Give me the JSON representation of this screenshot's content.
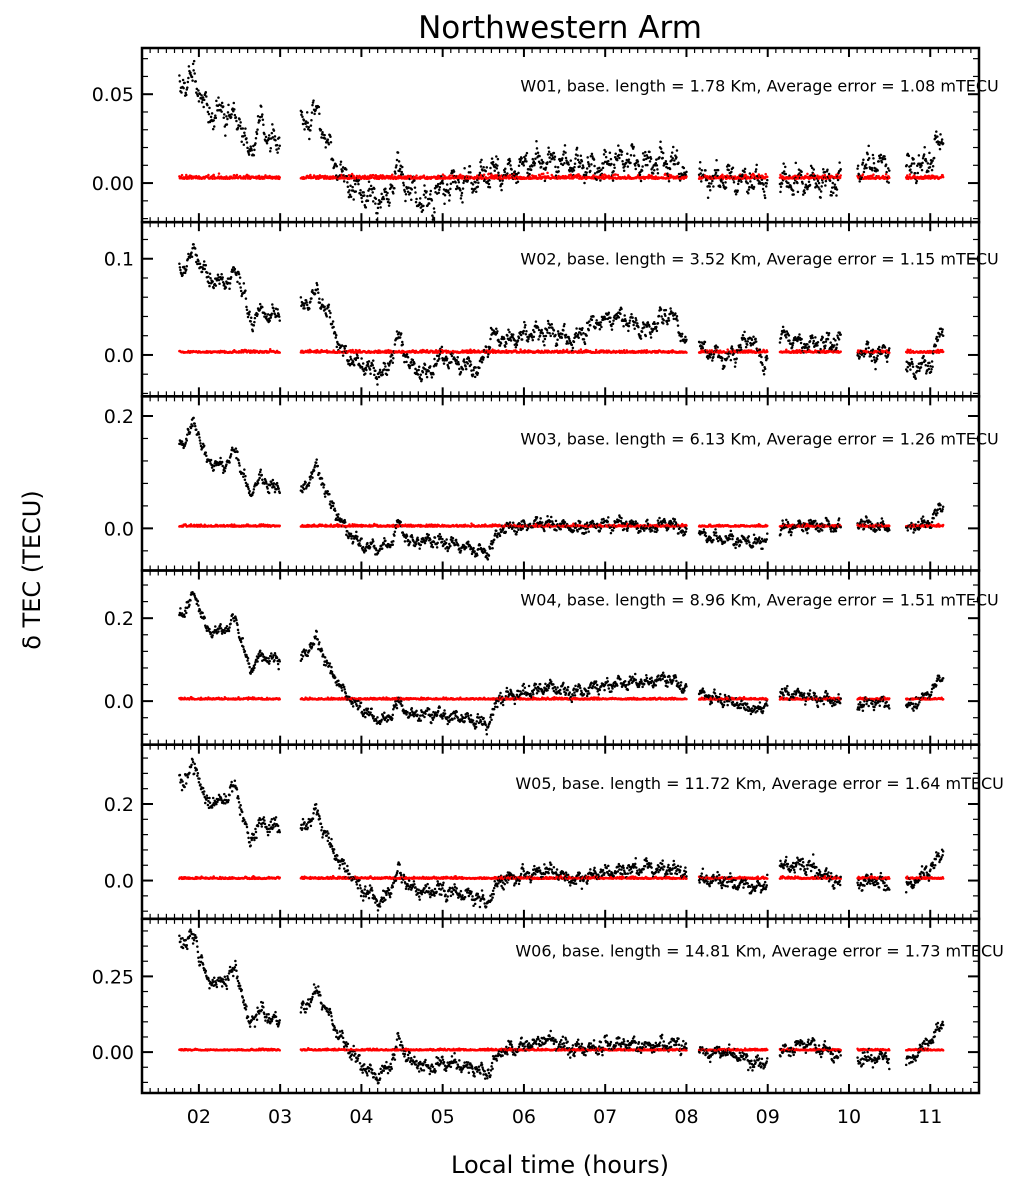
{
  "chart_data": {
    "type": "scatter",
    "title": "Northwestern Arm",
    "xlabel": "Local time (hours)",
    "ylabel": "δ TEC (TECU)",
    "x_unit": "hours",
    "xlim": [
      1.3,
      11.6
    ],
    "x_ticks": [
      2,
      3,
      4,
      5,
      6,
      7,
      8,
      9,
      10,
      11
    ],
    "x_tick_labels": [
      "02",
      "03",
      "04",
      "05",
      "06",
      "07",
      "08",
      "09",
      "10",
      "11"
    ],
    "data_gaps_hours": [
      [
        3.0,
        3.25
      ],
      [
        8.0,
        8.15
      ],
      [
        9.0,
        9.15
      ],
      [
        9.9,
        10.1
      ],
      [
        10.5,
        10.7
      ]
    ],
    "series_colors": {
      "delta_tec": "#000000",
      "error": "#ff0000"
    },
    "marker": "dot",
    "grid": false,
    "panels": [
      {
        "annotation": "W01, base. length = 1.78 Km, Average error = 1.08 mTECU",
        "ylim": [
          -0.022,
          0.076
        ],
        "y_ticks": [
          0.0,
          0.05
        ],
        "y_tick_labels": [
          "0.00",
          "0.05"
        ],
        "error_level": 0.003,
        "error_scatter": 0.0025,
        "noise_sd": 0.006,
        "delta_tec_trend": [
          [
            1.8,
            0.055
          ],
          [
            1.95,
            0.06
          ],
          [
            2.1,
            0.04
          ],
          [
            2.3,
            0.04
          ],
          [
            2.5,
            0.035
          ],
          [
            2.62,
            0.015
          ],
          [
            2.75,
            0.035
          ],
          [
            2.95,
            0.02
          ],
          [
            3.25,
            0.03
          ],
          [
            3.45,
            0.04
          ],
          [
            3.6,
            0.02
          ],
          [
            3.75,
            0.005
          ],
          [
            3.9,
            -0.002
          ],
          [
            4.1,
            -0.008
          ],
          [
            4.3,
            -0.01
          ],
          [
            4.45,
            0.01
          ],
          [
            4.6,
            -0.005
          ],
          [
            4.8,
            -0.012
          ],
          [
            5.0,
            -0.002
          ],
          [
            5.2,
            0.0
          ],
          [
            5.45,
            0.002
          ],
          [
            5.6,
            0.008
          ],
          [
            5.8,
            0.005
          ],
          [
            6.0,
            0.01
          ],
          [
            6.3,
            0.012
          ],
          [
            6.6,
            0.012
          ],
          [
            6.9,
            0.008
          ],
          [
            7.2,
            0.014
          ],
          [
            7.5,
            0.012
          ],
          [
            7.8,
            0.012
          ],
          [
            8.0,
            0.006
          ],
          [
            8.15,
            0.002
          ],
          [
            8.5,
            0.003
          ],
          [
            8.9,
            0.0
          ],
          [
            9.15,
            0.0
          ],
          [
            9.5,
            0.001
          ],
          [
            9.9,
            0.0
          ],
          [
            10.1,
            0.008
          ],
          [
            10.3,
            0.012
          ],
          [
            10.5,
            0.01
          ],
          [
            10.7,
            0.008
          ],
          [
            11.0,
            0.012
          ],
          [
            11.15,
            0.025
          ]
        ],
        "annotation_x": 8.9,
        "annotation_y": 0.055
      },
      {
        "annotation": "W02, base. length = 3.52 Km, Average error = 1.15 mTECU",
        "ylim": [
          -0.043,
          0.138
        ],
        "y_ticks": [
          0.0,
          0.1
        ],
        "y_tick_labels": [
          "0.0",
          "0.1"
        ],
        "error_level": 0.003,
        "error_scatter": 0.003,
        "noise_sd": 0.007,
        "delta_tec_trend": [
          [
            1.8,
            0.09
          ],
          [
            1.95,
            0.11
          ],
          [
            2.1,
            0.08
          ],
          [
            2.3,
            0.075
          ],
          [
            2.5,
            0.085
          ],
          [
            2.62,
            0.035
          ],
          [
            2.75,
            0.045
          ],
          [
            2.95,
            0.04
          ],
          [
            3.25,
            0.045
          ],
          [
            3.45,
            0.065
          ],
          [
            3.6,
            0.04
          ],
          [
            3.75,
            0.005
          ],
          [
            3.9,
            -0.005
          ],
          [
            4.1,
            -0.015
          ],
          [
            4.3,
            -0.02
          ],
          [
            4.45,
            0.02
          ],
          [
            4.6,
            -0.01
          ],
          [
            4.8,
            -0.02
          ],
          [
            5.0,
            0.0
          ],
          [
            5.2,
            -0.01
          ],
          [
            5.45,
            -0.015
          ],
          [
            5.6,
            0.02
          ],
          [
            5.8,
            0.015
          ],
          [
            6.0,
            0.02
          ],
          [
            6.3,
            0.025
          ],
          [
            6.6,
            0.015
          ],
          [
            6.9,
            0.035
          ],
          [
            7.2,
            0.04
          ],
          [
            7.5,
            0.025
          ],
          [
            7.8,
            0.045
          ],
          [
            8.0,
            0.015
          ],
          [
            8.15,
            0.008
          ],
          [
            8.5,
            -0.005
          ],
          [
            8.8,
            0.02
          ],
          [
            8.95,
            -0.01
          ],
          [
            9.15,
            0.02
          ],
          [
            9.5,
            0.01
          ],
          [
            9.9,
            0.015
          ],
          [
            10.1,
            0.005
          ],
          [
            10.3,
            0.0
          ],
          [
            10.5,
            0.005
          ],
          [
            10.7,
            -0.015
          ],
          [
            11.0,
            -0.01
          ],
          [
            11.15,
            0.03
          ]
        ],
        "annotation_x": 8.9,
        "annotation_y": 0.1
      },
      {
        "annotation": "W03, base. length = 6.13 Km, Average error = 1.26 mTECU",
        "ylim": [
          -0.075,
          0.235
        ],
        "y_ticks": [
          0.0,
          0.2
        ],
        "y_tick_labels": [
          "0.0",
          "0.2"
        ],
        "error_level": 0.004,
        "error_scatter": 0.004,
        "noise_sd": 0.008,
        "delta_tec_trend": [
          [
            1.8,
            0.15
          ],
          [
            1.95,
            0.19
          ],
          [
            2.1,
            0.12
          ],
          [
            2.3,
            0.11
          ],
          [
            2.45,
            0.14
          ],
          [
            2.62,
            0.06
          ],
          [
            2.75,
            0.09
          ],
          [
            2.95,
            0.07
          ],
          [
            3.25,
            0.06
          ],
          [
            3.45,
            0.11
          ],
          [
            3.6,
            0.05
          ],
          [
            3.8,
            0.0
          ],
          [
            4.0,
            -0.03
          ],
          [
            4.2,
            -0.035
          ],
          [
            4.35,
            -0.03
          ],
          [
            4.45,
            0.01
          ],
          [
            4.6,
            -0.025
          ],
          [
            4.8,
            -0.02
          ],
          [
            5.0,
            -0.025
          ],
          [
            5.2,
            -0.03
          ],
          [
            5.45,
            -0.04
          ],
          [
            5.55,
            -0.045
          ],
          [
            5.7,
            0.0
          ],
          [
            6.0,
            0.005
          ],
          [
            6.3,
            0.01
          ],
          [
            6.6,
            0.0
          ],
          [
            6.9,
            0.005
          ],
          [
            7.2,
            0.01
          ],
          [
            7.5,
            0.0
          ],
          [
            7.8,
            0.01
          ],
          [
            8.0,
            -0.005
          ],
          [
            8.15,
            -0.01
          ],
          [
            8.5,
            -0.02
          ],
          [
            8.9,
            -0.025
          ],
          [
            9.15,
            0.0
          ],
          [
            9.5,
            0.005
          ],
          [
            9.9,
            0.005
          ],
          [
            10.1,
            0.01
          ],
          [
            10.3,
            0.005
          ],
          [
            10.5,
            0.0
          ],
          [
            10.7,
            0.0
          ],
          [
            11.0,
            0.01
          ],
          [
            11.15,
            0.045
          ]
        ],
        "annotation_x": 8.9,
        "annotation_y": 0.16
      },
      {
        "annotation": "W04, base. length = 8.96 Km, Average error = 1.51 mTECU",
        "ylim": [
          -0.105,
          0.315
        ],
        "y_ticks": [
          0.0,
          0.2
        ],
        "y_tick_labels": [
          "0.0",
          "0.2"
        ],
        "error_level": 0.005,
        "error_scatter": 0.005,
        "noise_sd": 0.01,
        "delta_tec_trend": [
          [
            1.8,
            0.21
          ],
          [
            1.95,
            0.26
          ],
          [
            2.1,
            0.17
          ],
          [
            2.3,
            0.17
          ],
          [
            2.45,
            0.2
          ],
          [
            2.62,
            0.08
          ],
          [
            2.75,
            0.11
          ],
          [
            2.95,
            0.1
          ],
          [
            3.25,
            0.1
          ],
          [
            3.45,
            0.15
          ],
          [
            3.6,
            0.08
          ],
          [
            3.8,
            0.02
          ],
          [
            4.0,
            -0.02
          ],
          [
            4.2,
            -0.045
          ],
          [
            4.35,
            -0.04
          ],
          [
            4.45,
            0.0
          ],
          [
            4.6,
            -0.035
          ],
          [
            4.8,
            -0.03
          ],
          [
            5.0,
            -0.035
          ],
          [
            5.2,
            -0.04
          ],
          [
            5.45,
            -0.045
          ],
          [
            5.55,
            -0.06
          ],
          [
            5.7,
            0.01
          ],
          [
            6.0,
            0.02
          ],
          [
            6.3,
            0.035
          ],
          [
            6.6,
            0.02
          ],
          [
            6.9,
            0.035
          ],
          [
            7.2,
            0.045
          ],
          [
            7.5,
            0.045
          ],
          [
            7.8,
            0.055
          ],
          [
            8.0,
            0.03
          ],
          [
            8.15,
            0.02
          ],
          [
            8.5,
            0.0
          ],
          [
            8.9,
            -0.02
          ],
          [
            9.15,
            0.02
          ],
          [
            9.5,
            0.01
          ],
          [
            9.9,
            0.0
          ],
          [
            10.1,
            -0.01
          ],
          [
            10.3,
            0.0
          ],
          [
            10.5,
            -0.005
          ],
          [
            10.7,
            -0.02
          ],
          [
            11.0,
            0.02
          ],
          [
            11.15,
            0.065
          ]
        ],
        "annotation_x": 8.9,
        "annotation_y": 0.245
      },
      {
        "annotation": "W05, base. length = 11.72 Km, Average error = 1.64 mTECU",
        "ylim": [
          -0.1,
          0.355
        ],
        "y_ticks": [
          0.0,
          0.2
        ],
        "y_tick_labels": [
          "0.0",
          "0.2"
        ],
        "error_level": 0.006,
        "error_scatter": 0.006,
        "noise_sd": 0.012,
        "delta_tec_trend": [
          [
            1.8,
            0.26
          ],
          [
            1.95,
            0.3
          ],
          [
            2.1,
            0.2
          ],
          [
            2.3,
            0.21
          ],
          [
            2.45,
            0.25
          ],
          [
            2.62,
            0.1
          ],
          [
            2.75,
            0.15
          ],
          [
            2.95,
            0.14
          ],
          [
            3.25,
            0.13
          ],
          [
            3.45,
            0.18
          ],
          [
            3.6,
            0.1
          ],
          [
            3.8,
            0.03
          ],
          [
            4.0,
            -0.02
          ],
          [
            4.2,
            -0.055
          ],
          [
            4.35,
            -0.03
          ],
          [
            4.45,
            0.03
          ],
          [
            4.6,
            -0.02
          ],
          [
            4.8,
            -0.03
          ],
          [
            5.0,
            -0.025
          ],
          [
            5.2,
            -0.03
          ],
          [
            5.45,
            -0.045
          ],
          [
            5.55,
            -0.06
          ],
          [
            5.7,
            0.0
          ],
          [
            6.0,
            0.015
          ],
          [
            6.3,
            0.025
          ],
          [
            6.6,
            0.0
          ],
          [
            6.9,
            0.02
          ],
          [
            7.2,
            0.025
          ],
          [
            7.5,
            0.035
          ],
          [
            7.8,
            0.03
          ],
          [
            8.0,
            0.02
          ],
          [
            8.15,
            0.0
          ],
          [
            8.5,
            0.0
          ],
          [
            8.9,
            -0.02
          ],
          [
            9.15,
            0.035
          ],
          [
            9.5,
            0.04
          ],
          [
            9.9,
            -0.01
          ],
          [
            10.1,
            -0.01
          ],
          [
            10.3,
            0.0
          ],
          [
            10.5,
            -0.01
          ],
          [
            10.7,
            -0.02
          ],
          [
            11.0,
            0.03
          ],
          [
            11.15,
            0.075
          ]
        ],
        "annotation_x": 8.9,
        "annotation_y": 0.255
      },
      {
        "annotation": "W06, base. length = 14.81 Km, Average error = 1.73 mTECU",
        "ylim": [
          -0.135,
          0.44
        ],
        "y_ticks": [
          0.0,
          0.25
        ],
        "y_tick_labels": [
          "0.00",
          "0.25"
        ],
        "error_level": 0.007,
        "error_scatter": 0.006,
        "noise_sd": 0.014,
        "delta_tec_trend": [
          [
            1.8,
            0.36
          ],
          [
            1.95,
            0.38
          ],
          [
            2.1,
            0.24
          ],
          [
            2.3,
            0.23
          ],
          [
            2.45,
            0.28
          ],
          [
            2.62,
            0.09
          ],
          [
            2.75,
            0.14
          ],
          [
            2.95,
            0.1
          ],
          [
            3.25,
            0.13
          ],
          [
            3.45,
            0.2
          ],
          [
            3.6,
            0.12
          ],
          [
            3.8,
            0.02
          ],
          [
            4.0,
            -0.04
          ],
          [
            4.2,
            -0.08
          ],
          [
            4.35,
            -0.05
          ],
          [
            4.45,
            0.04
          ],
          [
            4.6,
            -0.03
          ],
          [
            4.8,
            -0.05
          ],
          [
            5.0,
            -0.035
          ],
          [
            5.2,
            -0.04
          ],
          [
            5.45,
            -0.06
          ],
          [
            5.55,
            -0.075
          ],
          [
            5.7,
            0.0
          ],
          [
            6.0,
            0.02
          ],
          [
            6.3,
            0.04
          ],
          [
            6.6,
            0.01
          ],
          [
            6.9,
            0.015
          ],
          [
            7.2,
            0.03
          ],
          [
            7.5,
            0.02
          ],
          [
            7.8,
            0.03
          ],
          [
            8.0,
            0.02
          ],
          [
            8.15,
            0.0
          ],
          [
            8.5,
            0.0
          ],
          [
            8.9,
            -0.04
          ],
          [
            9.15,
            0.0
          ],
          [
            9.5,
            0.03
          ],
          [
            9.9,
            -0.02
          ],
          [
            10.1,
            -0.02
          ],
          [
            10.3,
            -0.02
          ],
          [
            10.5,
            -0.02
          ],
          [
            10.7,
            -0.04
          ],
          [
            11.0,
            0.04
          ],
          [
            11.15,
            0.09
          ]
        ],
        "annotation_x": 8.9,
        "annotation_y": 0.335
      }
    ]
  }
}
